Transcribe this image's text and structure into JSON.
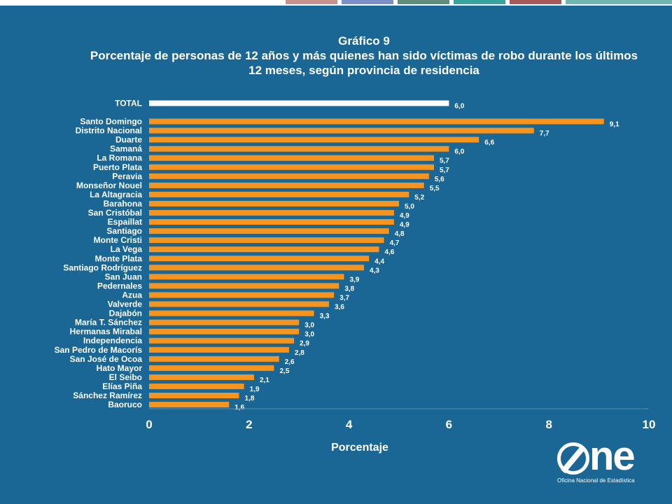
{
  "header": {
    "stripes": [
      {
        "color": "#c8928c"
      },
      {
        "color": "#7b8fc8"
      },
      {
        "color": "#5f8f78"
      },
      {
        "color": "#3aa3a0"
      },
      {
        "color": "#a85a5a"
      },
      {
        "color": "#6fb6b0"
      }
    ]
  },
  "logo": {
    "word": "ne",
    "subtitle": "Oficina Nacional de Estadística"
  },
  "chart_data": {
    "type": "bar",
    "orientation": "horizontal",
    "title": "Gráfico 9",
    "subtitle": "Porcentaje de personas de 12 años y más quienes han sido víctimas de robo durante los últimos 12 meses, según provincia de residencia",
    "xlabel": "Porcentaje",
    "ylabel": "",
    "xlim": [
      0,
      10
    ],
    "xticks": [
      "0",
      "2",
      "4",
      "6",
      "8",
      "10"
    ],
    "grid": false,
    "colors": {
      "total": "#ffffff",
      "bars": "#f7941d",
      "text": "#ffffff"
    },
    "categories": [
      "TOTAL",
      "Santo Domingo",
      "Distrito Nacional",
      "Duarte",
      "Samaná",
      "La Romana",
      "Puerto Plata",
      "Peravia",
      "Monseñor Nouel",
      "La Altagracia",
      "Barahona",
      "San Cristóbal",
      "Espaillat",
      "Santiago",
      "Monte Cristi",
      "La Vega",
      "Monte Plata",
      "Santiago Rodríguez",
      "San Juan",
      "Pedernales",
      "Azua",
      "Valverde",
      "Dajabón",
      "María T. Sánchez",
      "Hermanas Mirabal",
      "Independencia",
      "San Pedro de Macorís",
      "San José de Ocoa",
      "Hato Mayor",
      "El Seibo",
      "Elías Piña",
      "Sánchez Ramírez",
      "Baoruco"
    ],
    "values": [
      6.0,
      9.1,
      7.7,
      6.6,
      6.0,
      5.7,
      5.7,
      5.6,
      5.5,
      5.2,
      5.0,
      4.9,
      4.9,
      4.8,
      4.7,
      4.6,
      4.4,
      4.3,
      3.9,
      3.8,
      3.7,
      3.6,
      3.3,
      3.0,
      3.0,
      2.9,
      2.8,
      2.6,
      2.5,
      2.1,
      1.9,
      1.8,
      1.6
    ],
    "value_labels": [
      "6,0",
      "9,1",
      "7,7",
      "6,6",
      "6,0",
      "5,7",
      "5,7",
      "5,6",
      "5,5",
      "5,2",
      "5,0",
      "4,9",
      "4,9",
      "4,8",
      "4,7",
      "4,6",
      "4,4",
      "4,3",
      "3,9",
      "3,8",
      "3,7",
      "3,6",
      "3,3",
      "3,0",
      "3,0",
      "2,9",
      "2,8",
      "2,6",
      "2,5",
      "2,1",
      "1,9",
      "1,8",
      "1,6"
    ]
  }
}
